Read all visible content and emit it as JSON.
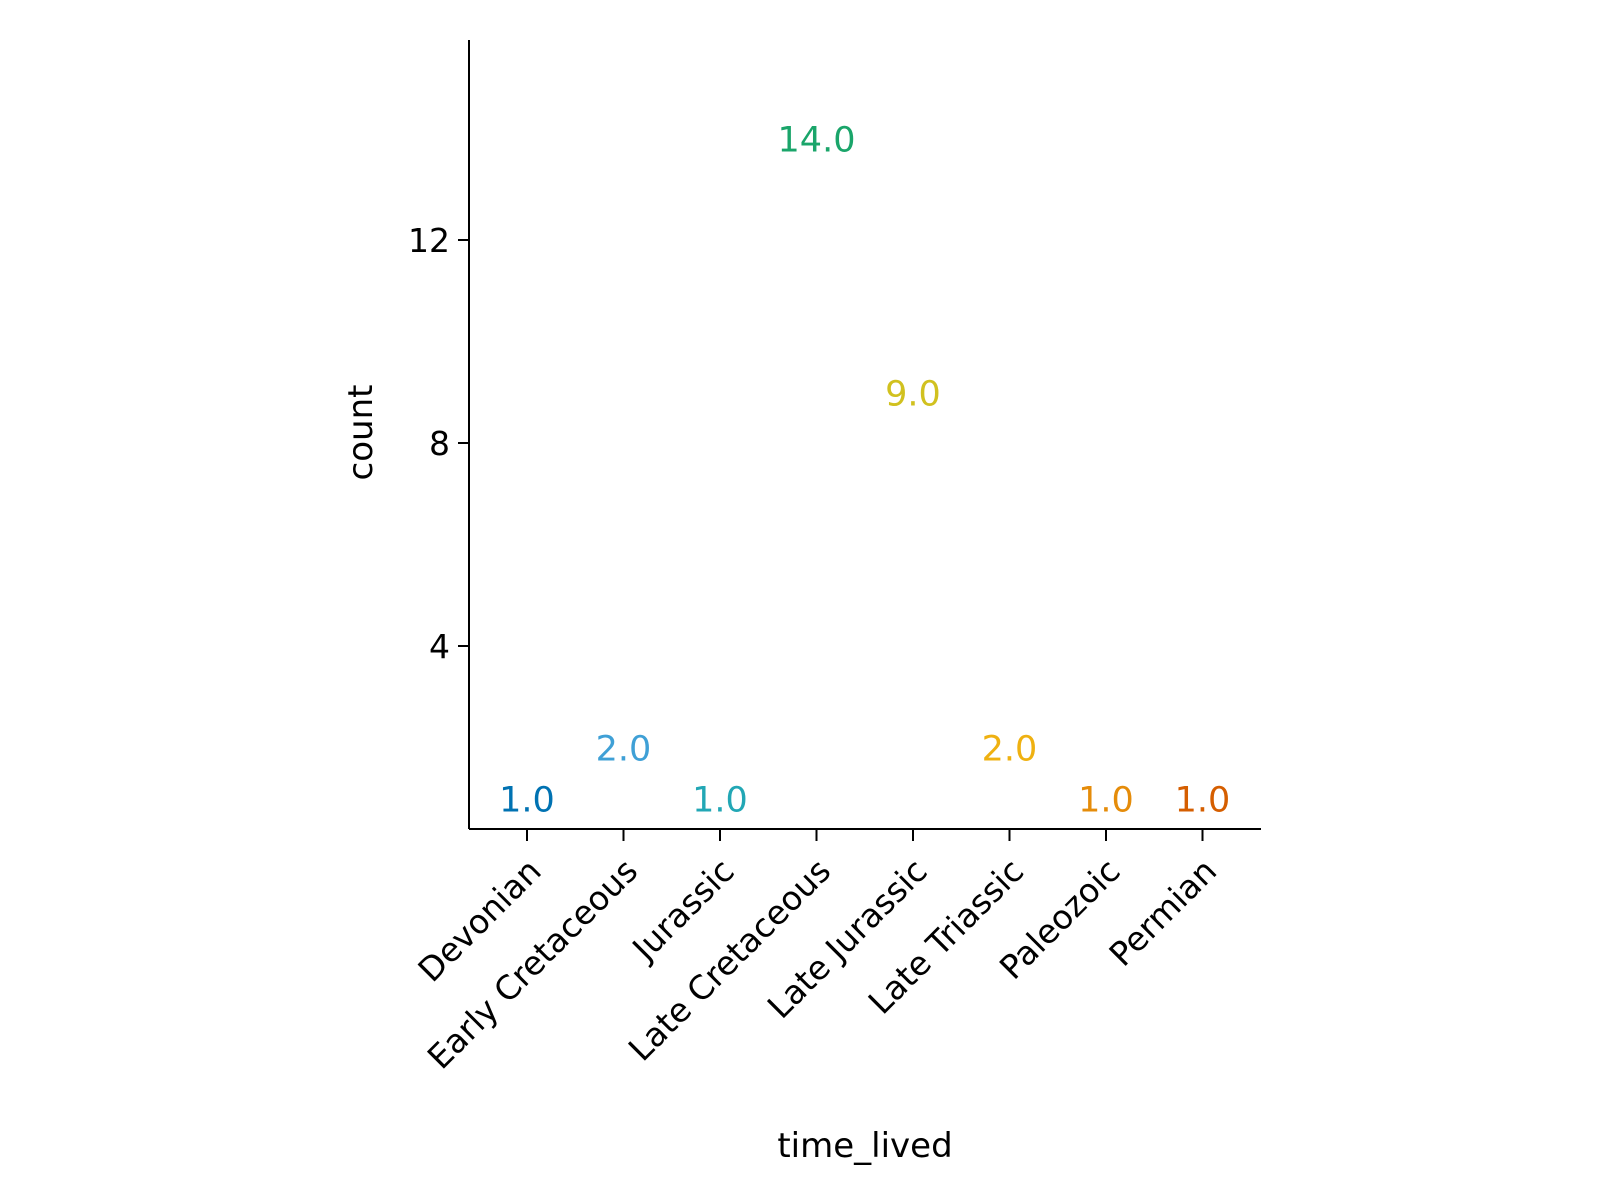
{
  "chart_data": {
    "type": "scatter",
    "mark": "text",
    "xlabel": "time_lived",
    "ylabel": "count",
    "categories": [
      "Devonian",
      "Early Cretaceous",
      "Jurassic",
      "Late Cretaceous",
      "Late Jurassic",
      "Late Triassic",
      "Paleozoic",
      "Permian"
    ],
    "values": [
      1,
      2,
      1,
      14,
      9,
      2,
      1,
      1
    ],
    "point_labels": [
      "1.0",
      "2.0",
      "1.0",
      "14.0",
      "9.0",
      "2.0",
      "1.0",
      "1.0"
    ],
    "colors": [
      "#0072b2",
      "#3fa0d6",
      "#22a7b5",
      "#1aa56a",
      "#d1c11f",
      "#efb111",
      "#e58c0a",
      "#d55e00"
    ],
    "yticks": [
      4,
      8,
      12
    ],
    "ytick_labels": [
      "4",
      "8",
      "12"
    ],
    "ylim": [
      -0.3,
      15.3
    ],
    "grid": false,
    "legend": "none"
  }
}
